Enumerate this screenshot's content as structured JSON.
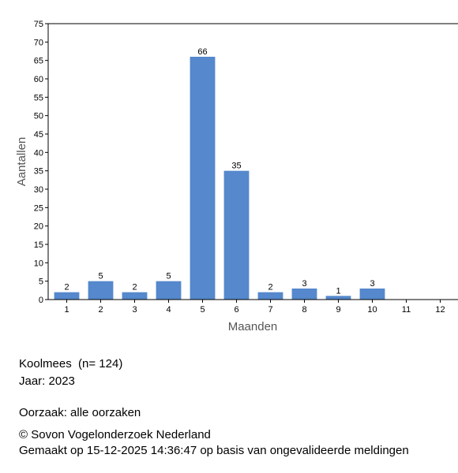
{
  "chart_data": {
    "type": "bar",
    "categories": [
      "1",
      "2",
      "3",
      "4",
      "5",
      "6",
      "7",
      "8",
      "9",
      "10",
      "11",
      "12"
    ],
    "values": [
      2,
      5,
      2,
      5,
      66,
      35,
      2,
      3,
      1,
      3,
      0,
      0
    ],
    "data_labels": [
      "2",
      "5",
      "2",
      "5",
      "66",
      "35",
      "2",
      "3",
      "1",
      "3",
      "",
      ""
    ],
    "xlabel": "Maanden",
    "ylabel": "Aantallen",
    "ylim": [
      0,
      75
    ],
    "yticks": [
      0,
      5,
      10,
      15,
      20,
      25,
      30,
      35,
      40,
      45,
      50,
      55,
      60,
      65,
      70,
      75
    ],
    "bar_color": "#5588cc",
    "grid": false,
    "legend": "none"
  },
  "info": {
    "species": "Koolmees  (n= 124)",
    "year": "Jaar: 2023",
    "cause": "Oorzaak: alle oorzaken",
    "copyright": "© Sovon Vogelonderzoek Nederland",
    "made": "Gemaakt op 15-12-2025 14:36:47 op basis van ongevalideerde meldingen"
  }
}
